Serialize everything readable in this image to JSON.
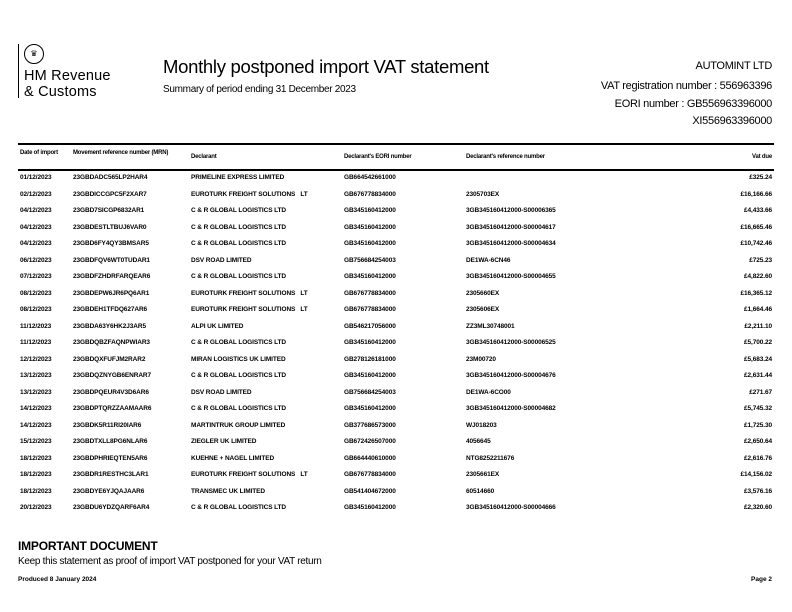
{
  "logo": {
    "line1": "HM Revenue",
    "line2": "& Customs",
    "crest_icon": "royal-crest-icon"
  },
  "header": {
    "title": "Monthly postponed import VAT statement",
    "subtitle": "Summary of period ending 31 December 2023",
    "company": "AUTOMINT LTD",
    "vat_registration": "VAT registration number : 556963396",
    "eori": "EORI number : GB556963396000",
    "xi_eori": "XI556963396000"
  },
  "table": {
    "columns": [
      "Date of import",
      "Movement reference number (MRN)",
      "Declarant",
      "Declarant's EORI number",
      "Declarant's reference number",
      "Vat due"
    ],
    "rows": [
      [
        "01/12/2023",
        "23GBDADC565LP2HAR4",
        "PRIMELINE EXPRESS LIMITED",
        "GB664542661000",
        "",
        "£325.24"
      ],
      [
        "02/12/2023",
        "23GBDICCGPC5F2XAR7",
        "EUROTURK FREIGHT SOLUTIONS   LT",
        "GB676778834000",
        "2305703EX",
        "£16,166.66"
      ],
      [
        "04/12/2023",
        "23GBD7SICGP6832AR1",
        "C & R GLOBAL LOGISTICS LTD",
        "GB345160412000",
        "3GB345160412000-S00006365",
        "£4,433.66"
      ],
      [
        "04/12/2023",
        "23GBDESTLTBUJ6VAR0",
        "C & R GLOBAL LOGISTICS LTD",
        "GB345160412000",
        "3GB345160412000-S00004617",
        "£16,665.46"
      ],
      [
        "04/12/2023",
        "23GBD6FY4QY3BMSAR5",
        "C & R GLOBAL LOGISTICS LTD",
        "GB345160412000",
        "3GB345160412000-S00004634",
        "£10,742.46"
      ],
      [
        "06/12/2023",
        "23GBDFQV6WT0TUDAR1",
        "DSV ROAD LIMITED",
        "GB756684254003",
        "DE1WA-6CN46",
        "£725.23"
      ],
      [
        "07/12/2023",
        "23GBDFZHDRFARQEAR6",
        "C & R GLOBAL LOGISTICS LTD",
        "GB345160412000",
        "3GB345160412000-S00004655",
        "£4,822.60"
      ],
      [
        "08/12/2023",
        "23GBDEPW6JR6PQ6AR1",
        "EUROTURK FREIGHT SOLUTIONS   LT",
        "GB676778834000",
        "2305660EX",
        "£16,365.12"
      ],
      [
        "08/12/2023",
        "23GBDEH1TFDQ627AR6",
        "EUROTURK FREIGHT SOLUTIONS   LT",
        "GB676778834000",
        "2305606EX",
        "£1,664.46"
      ],
      [
        "11/12/2023",
        "23GBDA63Y6HK2J3AR5",
        "ALPI UK LIMITED",
        "GB546217056000",
        "ZZ3ML30748001",
        "£2,211.10"
      ],
      [
        "11/12/2023",
        "23GBDQBZFAQNPWIAR3",
        "C & R GLOBAL LOGISTICS LTD",
        "GB345160412000",
        "3GB345160412000-S00006525",
        "£5,700.22"
      ],
      [
        "12/12/2023",
        "23GBDQXFUFJM2RAR2",
        "MIRAN LOGISTICS UK LIMITED",
        "GB278126181000",
        "23M00720",
        "£5,683.24"
      ],
      [
        "13/12/2023",
        "23GBDQZNYGB6ENRAR7",
        "C & R GLOBAL LOGISTICS LTD",
        "GB345160412000",
        "3GB345160412000-S00004676",
        "£2,631.44"
      ],
      [
        "13/12/2023",
        "23GBDPQEUR4V3D6AR6",
        "DSV ROAD LIMITED",
        "GB756684254003",
        "DE1WA-6CO00",
        "£271.67"
      ],
      [
        "14/12/2023",
        "23GBDPTQRZZAAMAAR6",
        "C & R GLOBAL LOGISTICS LTD",
        "GB345160412000",
        "3GB345160412000-S00004682",
        "£5,745.32"
      ],
      [
        "14/12/2023",
        "23GBDK5R11RI20IAR6",
        "MARTINTRUK GROUP LIMITED",
        "GB377686573000",
        "WJ018203",
        "£1,725.30"
      ],
      [
        "15/12/2023",
        "23GBDTXLL8PG6NLAR6",
        "ZIEGLER UK LIMITED",
        "GB672426507000",
        "4056645",
        "£2,650.64"
      ],
      [
        "18/12/2023",
        "23GBDPHRIEQTEN5AR6",
        "KUEHNE + NAGEL LIMITED",
        "GB664440610000",
        "NTG8252211676",
        "£2,616.76"
      ],
      [
        "18/12/2023",
        "23GBDR1RESTHC3LAR1",
        "EUROTURK FREIGHT SOLUTIONS   LT",
        "GB676778834000",
        "2305661EX",
        "£14,156.02"
      ],
      [
        "18/12/2023",
        "23GBDYE6YJQAJAAR6",
        "TRANSMEC UK LIMITED",
        "GB541404672000",
        "60514660",
        "£3,576.16"
      ],
      [
        "20/12/2023",
        "23GBDU6YDZQARF6AR4",
        "C & R GLOBAL LOGISTICS LTD",
        "GB345160412000",
        "3GB345160412000-S00004666",
        "£2,320.60"
      ]
    ]
  },
  "notice": {
    "heading": "IMPORTANT DOCUMENT",
    "text": "Keep this statement as proof of import VAT postponed for your VAT return"
  },
  "footer": {
    "produced": "Produced 8 January 2024",
    "page": "Page 2"
  }
}
